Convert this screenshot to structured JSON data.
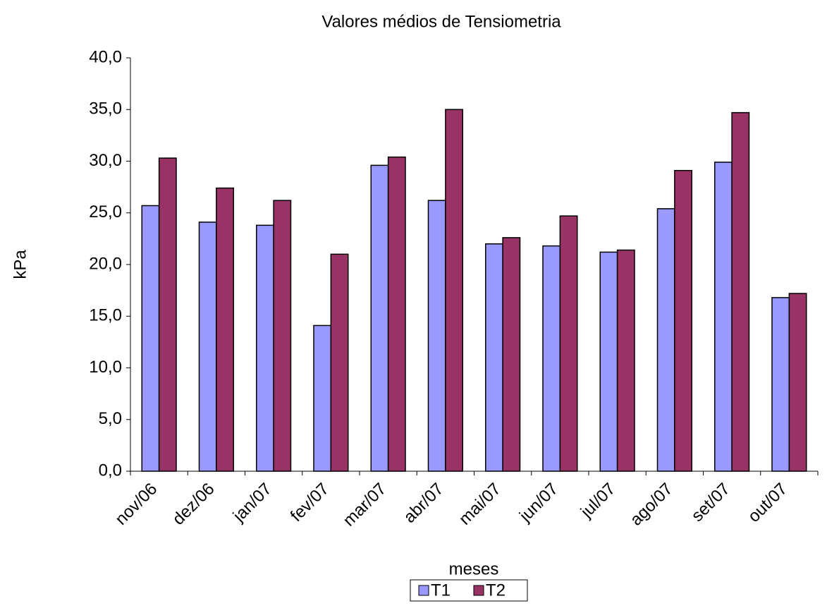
{
  "chart_data": {
    "type": "bar",
    "title": "Valores médios de Tensiometria",
    "x_label": "meses",
    "y_label": "kPa",
    "categories": [
      "nov/06",
      "dez/06",
      "jan/07",
      "fev/07",
      "mar/07",
      "abr/07",
      "mai/07",
      "jun/07",
      "jul/07",
      "ago/07",
      "set/07",
      "out/07"
    ],
    "series": [
      {
        "name": "T1",
        "color": "#9999ff",
        "values": [
          25.7,
          24.1,
          23.8,
          14.1,
          29.6,
          26.2,
          22.0,
          21.8,
          21.2,
          25.4,
          29.9,
          16.8
        ]
      },
      {
        "name": "T2",
        "color": "#993366",
        "values": [
          30.3,
          27.4,
          26.2,
          21.0,
          30.4,
          35.0,
          22.6,
          24.7,
          21.4,
          29.1,
          34.7,
          17.2
        ]
      }
    ],
    "ylim": [
      0,
      40
    ],
    "yticks": [
      {
        "value": 0,
        "label": "0,0"
      },
      {
        "value": 5,
        "label": "5,0"
      },
      {
        "value": 10,
        "label": "10,0"
      },
      {
        "value": 15,
        "label": "15,0"
      },
      {
        "value": 20,
        "label": "20,0"
      },
      {
        "value": 25,
        "label": "25,0"
      },
      {
        "value": 30,
        "label": "30,0"
      },
      {
        "value": 35,
        "label": "35,0"
      },
      {
        "value": 40,
        "label": "40,0"
      }
    ],
    "grid": false,
    "legend": "bottom"
  }
}
